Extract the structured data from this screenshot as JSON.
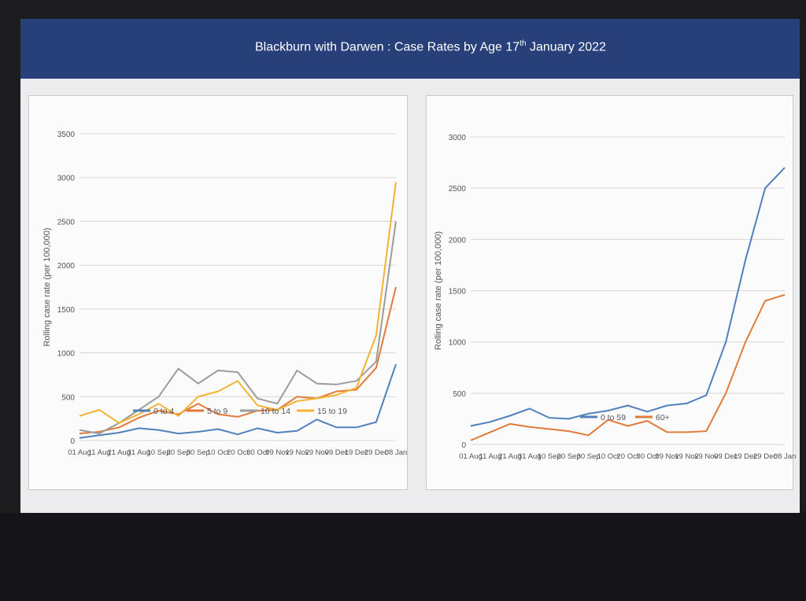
{
  "slide": {
    "title_main": "Blackburn with Darwen : Case Rates by Age 17",
    "title_sup": "th",
    "title_end": " January 2022"
  },
  "colors": {
    "header_bg": "#27407a",
    "series_0to4": "#4f81bd",
    "series_5to9": "#e07b39",
    "series_10to14": "#9c9c9c",
    "series_15to19": "#f4b233",
    "series_0to59": "#4f81bd",
    "series_60plus": "#e07b39"
  },
  "chart_data": [
    {
      "type": "line",
      "ylabel": "Rolling case rate (per 100,000)",
      "xlabel": "",
      "ylim": [
        0,
        3500
      ],
      "yticks": [
        0,
        500,
        1000,
        1500,
        2000,
        2500,
        3000,
        3500
      ],
      "grid": true,
      "legend": "bottom",
      "categories": [
        "01 Aug",
        "11 Aug",
        "21 Aug",
        "31 Aug",
        "10 Sep",
        "20 Sep",
        "30 Sep",
        "10 Oct",
        "20 Oct",
        "30 Oct",
        "09 Nov",
        "19 Nov",
        "29 Nov",
        "09 Dec",
        "19 Dec",
        "29 Dec",
        "08 Jan"
      ],
      "tick_labels": [
        "01 Aug",
        "11 Aug",
        "21 Aug",
        "31 Aug",
        "10 Sep",
        "20 Sep",
        "30 Sep",
        "10 Oct",
        "20 Oct",
        "30 Oct",
        "09 Nov",
        "19 Nov",
        "29 Nov",
        "09 Dec",
        "19 Dec",
        "29 Dec",
        "08 Jan"
      ],
      "series": [
        {
          "name": "0 to 4",
          "color_key": "series_0to4",
          "values": [
            30,
            60,
            90,
            140,
            120,
            80,
            100,
            130,
            70,
            140,
            90,
            110,
            240,
            150,
            150,
            210,
            870
          ]
        },
        {
          "name": "5 to 9",
          "color_key": "series_5to9",
          "values": [
            80,
            100,
            150,
            260,
            340,
            300,
            420,
            300,
            270,
            340,
            350,
            500,
            480,
            560,
            580,
            830,
            1750
          ]
        },
        {
          "name": "10 to 14",
          "color_key": "series_10to14",
          "values": [
            120,
            80,
            200,
            350,
            500,
            820,
            650,
            800,
            780,
            480,
            420,
            800,
            650,
            640,
            680,
            900,
            2500
          ]
        },
        {
          "name": "15 to 19",
          "color_key": "series_15to19",
          "values": [
            280,
            350,
            200,
            300,
            420,
            280,
            500,
            560,
            680,
            400,
            350,
            450,
            480,
            520,
            600,
            1200,
            2950
          ]
        }
      ]
    },
    {
      "type": "line",
      "ylabel": "Rolling case rate (per 100,000)",
      "xlabel": "",
      "ylim": [
        0,
        3000
      ],
      "yticks": [
        0,
        500,
        1000,
        1500,
        2000,
        2500,
        3000
      ],
      "grid": true,
      "legend": "bottom",
      "categories": [
        "01 Aug",
        "11 Aug",
        "21 Aug",
        "31 Aug",
        "10 Sep",
        "20 Sep",
        "30 Sep",
        "10 Oct",
        "20 Oct",
        "30 Oct",
        "09 Nov",
        "19 Nov",
        "29 Nov",
        "09 Dec",
        "19 Dec",
        "29 Dec",
        "08 Jan"
      ],
      "tick_labels": [
        "01 Aug",
        "11 Aug",
        "21 Aug",
        "31 Aug",
        "10 Sep",
        "20 Sep",
        "30 Sep",
        "10 Oct",
        "20 Oct",
        "30 Oct",
        "09 Nov",
        "19 Nov",
        "29 Nov",
        "09 Dec",
        "19 Dec",
        "29 Dec",
        "08 Jan"
      ],
      "series": [
        {
          "name": "0 to 59",
          "color_key": "series_0to59",
          "values": [
            180,
            220,
            280,
            350,
            260,
            250,
            300,
            330,
            380,
            320,
            380,
            400,
            480,
            1000,
            1800,
            2500,
            2700
          ]
        },
        {
          "name": "60+",
          "color_key": "series_60plus",
          "values": [
            40,
            120,
            200,
            170,
            150,
            130,
            90,
            240,
            180,
            230,
            120,
            120,
            130,
            500,
            1000,
            1400,
            1460
          ]
        }
      ]
    }
  ]
}
